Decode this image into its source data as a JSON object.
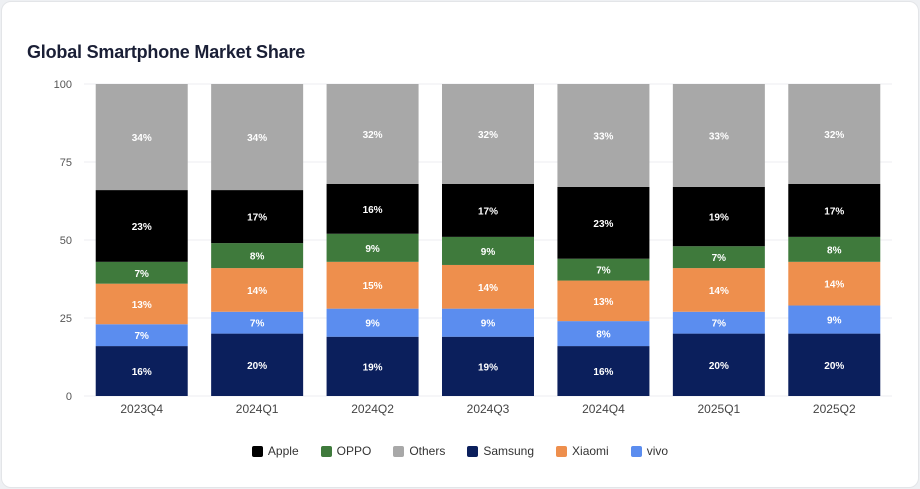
{
  "title": "Global Smartphone Market Share",
  "chart_data": {
    "type": "bar",
    "stacked": true,
    "title": "Global Smartphone Market Share",
    "categories": [
      "2023Q4",
      "2024Q1",
      "2024Q2",
      "2024Q3",
      "2024Q4",
      "2025Q1",
      "2025Q2"
    ],
    "ylim": [
      0,
      100
    ],
    "yticks": [
      0,
      25,
      50,
      75,
      100
    ],
    "xlabel": "",
    "ylabel": "",
    "value_suffix": "%",
    "series": [
      {
        "name": "Samsung",
        "color": "#0b1f5c",
        "values": [
          16,
          20,
          19,
          19,
          16,
          20,
          20
        ]
      },
      {
        "name": "vivo",
        "color": "#5b8def",
        "values": [
          7,
          7,
          9,
          9,
          8,
          7,
          9
        ]
      },
      {
        "name": "Xiaomi",
        "color": "#ee8f4d",
        "values": [
          13,
          14,
          15,
          14,
          13,
          14,
          14
        ]
      },
      {
        "name": "OPPO",
        "color": "#3f7a3c",
        "values": [
          7,
          8,
          9,
          9,
          7,
          7,
          8
        ]
      },
      {
        "name": "Apple",
        "color": "#000000",
        "values": [
          23,
          17,
          16,
          17,
          23,
          19,
          17
        ]
      },
      {
        "name": "Others",
        "color": "#a8a8a8",
        "values": [
          34,
          34,
          32,
          32,
          33,
          33,
          32
        ]
      }
    ],
    "legend_order": [
      "Apple",
      "OPPO",
      "Others",
      "Samsung",
      "Xiaomi",
      "vivo"
    ],
    "legend_position": "bottom"
  }
}
